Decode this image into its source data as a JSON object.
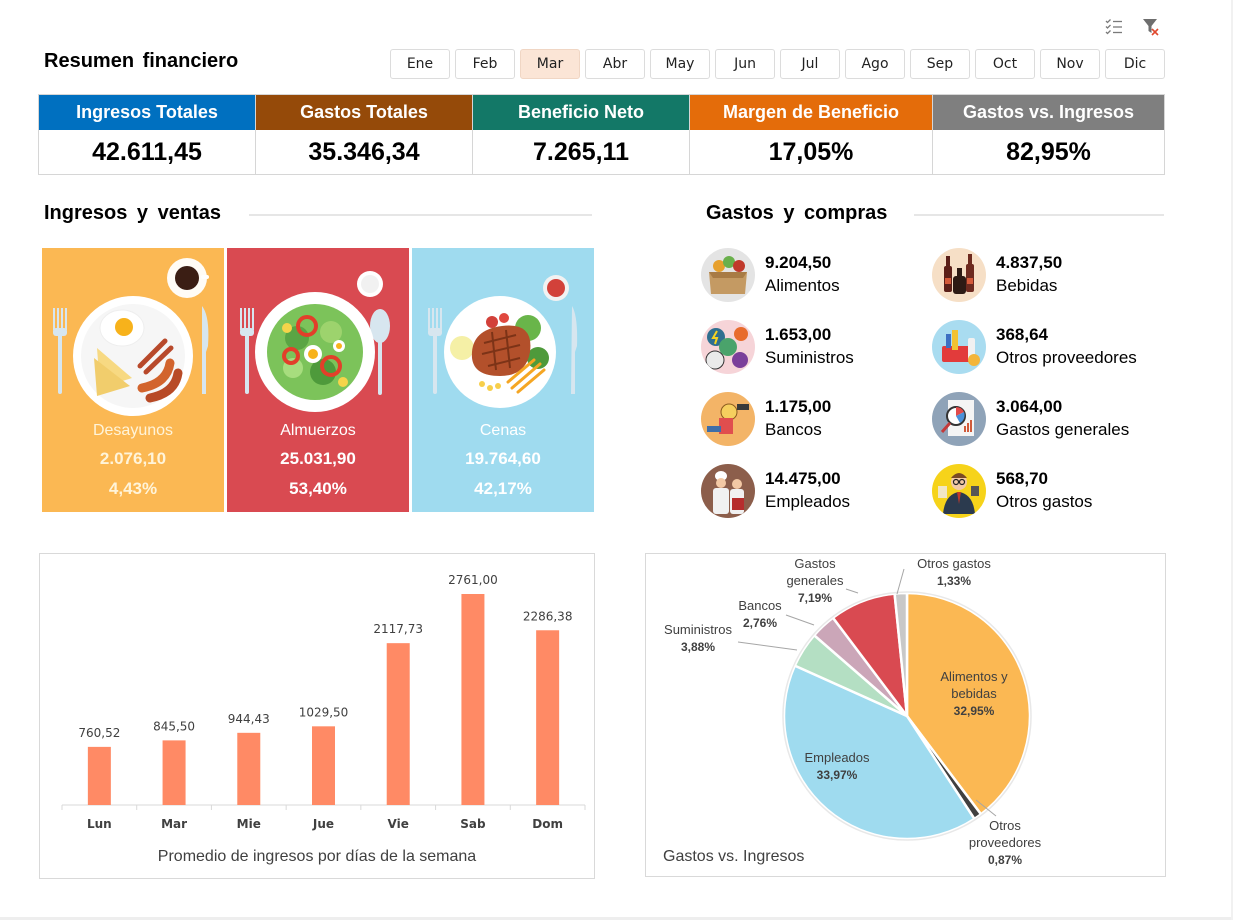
{
  "toolbar": {
    "multi_select_icon": "multi-select-icon",
    "clear_filter_icon": "clear-filter-icon"
  },
  "header": {
    "title": "Resumen financiero"
  },
  "months": {
    "items": [
      "Ene",
      "Feb",
      "Mar",
      "Abr",
      "May",
      "Jun",
      "Jul",
      "Ago",
      "Sep",
      "Oct",
      "Nov",
      "Dic"
    ],
    "selected": "Mar"
  },
  "kpis": [
    {
      "label": "Ingresos Totales",
      "value": "42.611,45",
      "color": "#0070c0"
    },
    {
      "label": "Gastos Totales",
      "value": "35.346,34",
      "color": "#954a09"
    },
    {
      "label": "Beneficio Neto",
      "value": "7.265,11",
      "color": "#137867"
    },
    {
      "label": "Margen de Beneficio",
      "value": "17,05%",
      "color": "#e46c0a"
    },
    {
      "label": "Gastos vs. Ingresos",
      "value": "82,95%",
      "color": "#7f7f7f"
    }
  ],
  "income": {
    "title": "Ingresos  y  ventas",
    "meals": [
      {
        "name": "Desayunos",
        "value": "2.076,10",
        "percent": "4,43%",
        "color": "#fbb853",
        "text_color": "#fff4d9"
      },
      {
        "name": "Almuerzos",
        "value": "25.031,90",
        "percent": "53,40%",
        "color": "#d94a51",
        "text_color": "#ffffff"
      },
      {
        "name": "Cenas",
        "value": "19.764,60",
        "percent": "42,17%",
        "color": "#9fdbef",
        "text_color": "#ffffff"
      }
    ]
  },
  "expenses": {
    "title": "Gastos  y  compras",
    "items": [
      {
        "value": "9.204,50",
        "label": "Alimentos",
        "icon": "groceries-box-icon"
      },
      {
        "value": "4.837,50",
        "label": "Bebidas",
        "icon": "bottles-icon"
      },
      {
        "value": "1.653,00",
        "label": "Suministros",
        "icon": "utilities-icon"
      },
      {
        "value": "368,64",
        "label": "Otros proveedores",
        "icon": "cleaning-supplies-icon"
      },
      {
        "value": "1.175,00",
        "label": "Bancos",
        "icon": "bank-money-icon"
      },
      {
        "value": "3.064,00",
        "label": "Gastos generales",
        "icon": "report-magnifier-icon"
      },
      {
        "value": "14.475,00",
        "label": "Empleados",
        "icon": "chefs-icon"
      },
      {
        "value": "568,70",
        "label": "Otros gastos",
        "icon": "businessman-icon"
      }
    ]
  },
  "chart_data": [
    {
      "type": "bar",
      "title": "Promedio de ingresos por días de la semana",
      "categories": [
        "Lun",
        "Mar",
        "Mie",
        "Jue",
        "Vie",
        "Sab",
        "Dom"
      ],
      "values": [
        760.52,
        845.5,
        944.43,
        1029.5,
        2117.73,
        2761.0,
        2286.38
      ],
      "data_labels": [
        "760,52",
        "845,50",
        "944,43",
        "1029,50",
        "2117,73",
        "2761,00",
        "2286,38"
      ],
      "color": "#ff8a65",
      "xlabel": "",
      "ylabel": "",
      "ylim": [
        0,
        3000
      ],
      "grid": false,
      "legend": "none"
    },
    {
      "type": "pie",
      "title": "Gastos vs. Ingresos",
      "slices": [
        {
          "name": "Alimentos y bebidas",
          "label_lines": [
            "Alimentos  y",
            "bebidas"
          ],
          "percent_label": "32,95%",
          "value": 14042.0,
          "color": "#fbb853"
        },
        {
          "name": "Otros proveedores",
          "label_lines": [
            "Otros",
            "proveedores"
          ],
          "percent_label": "0,87%",
          "value": 368.64,
          "color": "#404040"
        },
        {
          "name": "Empleados",
          "label_lines": [
            "Empleados"
          ],
          "percent_label": "33,97%",
          "value": 14475.0,
          "color": "#9fdbef"
        },
        {
          "name": "Suministros",
          "label_lines": [
            "Suministros"
          ],
          "percent_label": "3,88%",
          "value": 1653.0,
          "color": "#b4dfc3"
        },
        {
          "name": "Bancos",
          "label_lines": [
            "Bancos"
          ],
          "percent_label": "2,76%",
          "value": 1175.0,
          "color": "#cba6b8"
        },
        {
          "name": "Gastos generales",
          "label_lines": [
            "Gastos",
            "generales"
          ],
          "percent_label": "7,19%",
          "value": 3064.0,
          "color": "#d94a51"
        },
        {
          "name": "Otros gastos",
          "label_lines": [
            "Otros gastos"
          ],
          "percent_label": "1,33%",
          "value": 568.7,
          "color": "#c8c8c8"
        }
      ],
      "legend": "none"
    }
  ]
}
